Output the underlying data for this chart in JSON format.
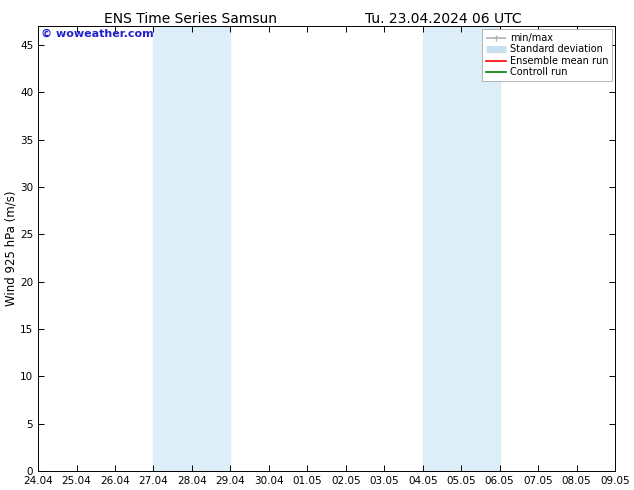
{
  "title_left": "ENS Time Series Samsun",
  "title_right": "Tu. 23.04.2024 06 UTC",
  "ylabel": "Wind 925 hPa (m/s)",
  "watermark": "© woweather.com",
  "xtick_labels": [
    "24.04",
    "25.04",
    "26.04",
    "27.04",
    "28.04",
    "29.04",
    "30.04",
    "01.05",
    "02.05",
    "03.05",
    "04.05",
    "05.05",
    "06.05",
    "07.05",
    "08.05",
    "09.05"
  ],
  "ylim": [
    0,
    47
  ],
  "yticks": [
    0,
    5,
    10,
    15,
    20,
    25,
    30,
    35,
    40,
    45
  ],
  "shaded_regions": [
    {
      "xstart": 3,
      "xend": 5,
      "color": "#ddeef8"
    },
    {
      "xstart": 10,
      "xend": 12,
      "color": "#ddeef8"
    }
  ],
  "legend_entries": [
    {
      "label": "min/max",
      "color": "#b0b0b0",
      "lw": 1.2
    },
    {
      "label": "Standard deviation",
      "color": "#c8dff0",
      "lw": 5
    },
    {
      "label": "Ensemble mean run",
      "color": "#ff0000",
      "lw": 1.2
    },
    {
      "label": "Controll run",
      "color": "#008000",
      "lw": 1.2
    }
  ],
  "bg_color": "#ffffff",
  "plot_bg_color": "#ffffff",
  "tick_fontsize": 7.5,
  "label_fontsize": 8.5,
  "title_fontsize": 10,
  "watermark_fontsize": 8,
  "watermark_color": "#2222cc"
}
